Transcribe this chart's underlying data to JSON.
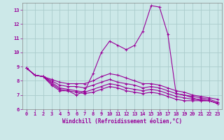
{
  "title": "",
  "xlabel": "Windchill (Refroidissement éolien,°C)",
  "ylabel": "",
  "xlim": [
    -0.5,
    23.5
  ],
  "ylim": [
    6,
    13.5
  ],
  "xticks": [
    0,
    1,
    2,
    3,
    4,
    5,
    6,
    7,
    8,
    9,
    10,
    11,
    12,
    13,
    14,
    15,
    16,
    17,
    18,
    19,
    20,
    21,
    22,
    23
  ],
  "yticks": [
    6,
    7,
    8,
    9,
    10,
    11,
    12,
    13
  ],
  "bg_color": "#cce8e8",
  "line_color": "#990099",
  "grid_color": "#aacccc",
  "curves": [
    {
      "x": [
        0,
        1,
        2,
        3,
        4,
        5,
        6,
        7,
        8,
        9,
        10,
        11,
        12,
        13,
        14,
        15,
        16,
        17,
        18,
        19,
        20,
        21,
        22,
        23
      ],
      "y": [
        8.9,
        8.4,
        8.3,
        7.7,
        7.3,
        7.3,
        7.0,
        7.3,
        8.5,
        10.0,
        10.8,
        10.5,
        10.2,
        10.5,
        11.5,
        13.3,
        13.2,
        11.3,
        7.1,
        7.0,
        6.8,
        6.6,
        6.6,
        6.4
      ]
    },
    {
      "x": [
        0,
        1,
        2,
        3,
        4,
        5,
        6,
        7,
        8,
        9,
        10,
        11,
        12,
        13,
        14,
        15,
        16,
        17,
        18,
        19,
        20,
        21,
        22,
        23
      ],
      "y": [
        8.9,
        8.4,
        8.3,
        8.1,
        7.9,
        7.8,
        7.8,
        7.8,
        8.0,
        8.3,
        8.5,
        8.4,
        8.2,
        8.0,
        7.8,
        7.8,
        7.7,
        7.5,
        7.3,
        7.2,
        7.0,
        6.9,
        6.8,
        6.7
      ]
    },
    {
      "x": [
        0,
        1,
        2,
        3,
        4,
        5,
        6,
        7,
        8,
        9,
        10,
        11,
        12,
        13,
        14,
        15,
        16,
        17,
        18,
        19,
        20,
        21,
        22,
        23
      ],
      "y": [
        8.9,
        8.4,
        8.3,
        8.0,
        7.7,
        7.6,
        7.6,
        7.5,
        7.7,
        7.9,
        8.1,
        7.9,
        7.8,
        7.7,
        7.5,
        7.6,
        7.5,
        7.3,
        7.1,
        7.0,
        6.9,
        6.8,
        6.7,
        6.5
      ]
    },
    {
      "x": [
        0,
        1,
        2,
        3,
        4,
        5,
        6,
        7,
        8,
        9,
        10,
        11,
        12,
        13,
        14,
        15,
        16,
        17,
        18,
        19,
        20,
        21,
        22,
        23
      ],
      "y": [
        8.9,
        8.4,
        8.3,
        7.9,
        7.5,
        7.4,
        7.3,
        7.2,
        7.4,
        7.6,
        7.8,
        7.7,
        7.5,
        7.4,
        7.3,
        7.4,
        7.3,
        7.1,
        6.9,
        6.8,
        6.7,
        6.7,
        6.6,
        6.4
      ]
    },
    {
      "x": [
        0,
        1,
        2,
        3,
        4,
        5,
        6,
        7,
        8,
        9,
        10,
        11,
        12,
        13,
        14,
        15,
        16,
        17,
        18,
        19,
        20,
        21,
        22,
        23
      ],
      "y": [
        8.9,
        8.4,
        8.3,
        7.8,
        7.4,
        7.3,
        7.2,
        7.1,
        7.2,
        7.4,
        7.6,
        7.5,
        7.3,
        7.2,
        7.1,
        7.2,
        7.1,
        6.9,
        6.7,
        6.6,
        6.6,
        6.6,
        6.6,
        6.4
      ]
    }
  ]
}
